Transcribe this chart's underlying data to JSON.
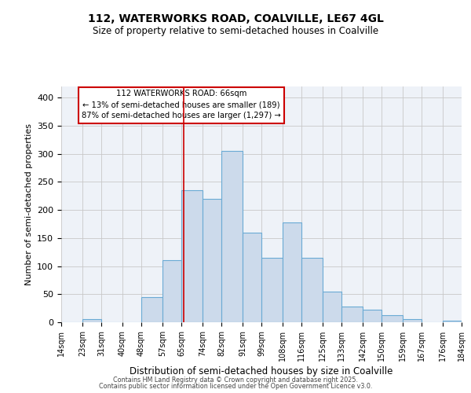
{
  "title": "112, WATERWORKS ROAD, COALVILLE, LE67 4GL",
  "subtitle": "Size of property relative to semi-detached houses in Coalville",
  "xlabel": "Distribution of semi-detached houses by size in Coalville",
  "ylabel": "Number of semi-detached properties",
  "bin_edges": [
    14,
    23,
    31,
    40,
    48,
    57,
    65,
    74,
    82,
    91,
    99,
    108,
    116,
    125,
    133,
    142,
    150,
    159,
    167,
    176,
    184
  ],
  "bar_heights": [
    0,
    5,
    0,
    0,
    45,
    110,
    235,
    220,
    305,
    160,
    115,
    178,
    115,
    55,
    28,
    22,
    13,
    5,
    0,
    3
  ],
  "bar_color": "#ccdaeb",
  "bar_edge_color": "#6aaad4",
  "grid_color": "#c8c8c8",
  "bg_color": "#eef2f8",
  "marker_value": 66,
  "marker_color": "#cc0000",
  "annotation_title": "112 WATERWORKS ROAD: 66sqm",
  "annotation_line1": "← 13% of semi-detached houses are smaller (189)",
  "annotation_line2": "87% of semi-detached houses are larger (1,297) →",
  "footer1": "Contains HM Land Registry data © Crown copyright and database right 2025.",
  "footer2": "Contains public sector information licensed under the Open Government Licence v3.0.",
  "ylim": [
    0,
    420
  ],
  "yticks": [
    0,
    50,
    100,
    150,
    200,
    250,
    300,
    350,
    400
  ]
}
